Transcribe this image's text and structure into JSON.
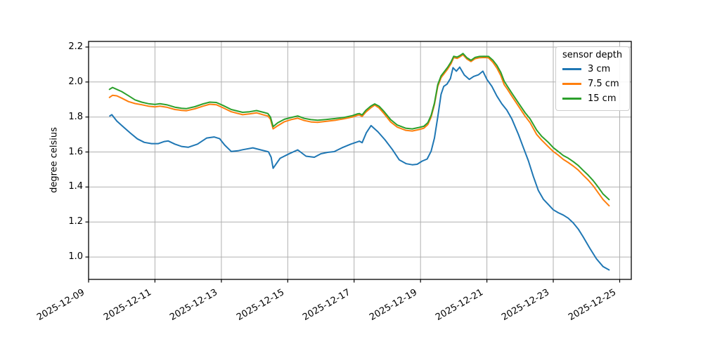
{
  "chart_data": {
    "type": "line",
    "title": "",
    "xlabel": "",
    "ylabel": "degree celsius",
    "legend": {
      "title": "sensor depth",
      "position": "upper right"
    },
    "style": {
      "grid_color": "#b0b0b0",
      "spine_color": "#000000",
      "text_color": "#000000",
      "background": "#ffffff",
      "grid": true
    },
    "axes": {
      "x_unit": "day of month, December 2025",
      "x_min": 9.0,
      "x_max": 25.35,
      "y_min": 0.872,
      "y_max": 2.232,
      "x_ticks": [
        {
          "v": 9,
          "label": "2025-12-09"
        },
        {
          "v": 11,
          "label": "2025-12-11"
        },
        {
          "v": 13,
          "label": "2025-12-13"
        },
        {
          "v": 15,
          "label": "2025-12-15"
        },
        {
          "v": 17,
          "label": "2025-12-17"
        },
        {
          "v": 19,
          "label": "2025-12-19"
        },
        {
          "v": 21,
          "label": "2025-12-21"
        },
        {
          "v": 23,
          "label": "2025-12-23"
        },
        {
          "v": 25,
          "label": "2025-12-25"
        }
      ],
      "y_ticks": [
        {
          "v": 1.0,
          "label": "1.0"
        },
        {
          "v": 1.2,
          "label": "1.2"
        },
        {
          "v": 1.4,
          "label": "1.4"
        },
        {
          "v": 1.6,
          "label": "1.6"
        },
        {
          "v": 1.8,
          "label": "1.8"
        },
        {
          "v": 2.0,
          "label": "2.0"
        },
        {
          "v": 2.2,
          "label": "2.2"
        }
      ]
    },
    "series": [
      {
        "name": "3 cm",
        "color": "#1f77b4",
        "x": [
          9.64,
          9.7,
          9.85,
          10.06,
          10.26,
          10.47,
          10.68,
          10.9,
          11.1,
          11.28,
          11.4,
          11.6,
          11.8,
          12.0,
          12.28,
          12.56,
          12.78,
          12.95,
          13.1,
          13.3,
          13.5,
          13.64,
          13.95,
          14.27,
          14.42,
          14.5,
          14.56,
          14.77,
          15.05,
          15.3,
          15.55,
          15.8,
          16.0,
          16.2,
          16.4,
          16.63,
          16.9,
          17.1,
          17.16,
          17.24,
          17.37,
          17.51,
          17.72,
          17.93,
          18.15,
          18.36,
          18.57,
          18.75,
          18.9,
          19.05,
          19.2,
          19.32,
          19.42,
          19.52,
          19.62,
          19.7,
          19.8,
          19.9,
          19.98,
          20.08,
          20.18,
          20.32,
          20.47,
          20.6,
          20.75,
          20.88,
          21.0,
          21.15,
          21.3,
          21.45,
          21.6,
          21.75,
          21.95,
          22.1,
          22.25,
          22.4,
          22.55,
          22.7,
          22.85,
          23.0,
          23.15,
          23.3,
          23.45,
          23.6,
          23.75,
          23.9,
          24.1,
          24.3,
          24.5,
          24.68
        ],
        "y": [
          1.806,
          1.813,
          1.777,
          1.741,
          1.708,
          1.675,
          1.655,
          1.648,
          1.648,
          1.66,
          1.663,
          1.645,
          1.632,
          1.627,
          1.645,
          1.68,
          1.686,
          1.676,
          1.64,
          1.603,
          1.607,
          1.613,
          1.624,
          1.608,
          1.601,
          1.57,
          1.507,
          1.564,
          1.591,
          1.612,
          1.576,
          1.57,
          1.59,
          1.598,
          1.602,
          1.624,
          1.645,
          1.658,
          1.662,
          1.653,
          1.711,
          1.751,
          1.715,
          1.67,
          1.615,
          1.555,
          1.533,
          1.527,
          1.53,
          1.548,
          1.56,
          1.605,
          1.68,
          1.8,
          1.93,
          1.975,
          1.988,
          2.02,
          2.082,
          2.062,
          2.085,
          2.04,
          2.015,
          2.032,
          2.042,
          2.062,
          2.015,
          1.975,
          1.92,
          1.875,
          1.84,
          1.79,
          1.7,
          1.625,
          1.55,
          1.46,
          1.38,
          1.33,
          1.3,
          1.27,
          1.253,
          1.24,
          1.222,
          1.195,
          1.16,
          1.115,
          1.05,
          0.99,
          0.945,
          0.926
        ]
      },
      {
        "name": "7.5 cm",
        "color": "#ff7f0e",
        "x": [
          9.63,
          9.72,
          9.85,
          10.0,
          10.2,
          10.4,
          10.6,
          10.8,
          11.0,
          11.15,
          11.35,
          11.6,
          11.8,
          11.95,
          12.2,
          12.45,
          12.65,
          12.85,
          13.05,
          13.3,
          13.64,
          13.85,
          14.06,
          14.27,
          14.4,
          14.48,
          14.56,
          14.7,
          14.9,
          15.1,
          15.3,
          15.5,
          15.7,
          15.9,
          16.15,
          16.45,
          16.7,
          16.95,
          17.1,
          17.16,
          17.24,
          17.35,
          17.5,
          17.62,
          17.75,
          17.9,
          18.1,
          18.3,
          18.55,
          18.75,
          18.95,
          19.1,
          19.22,
          19.32,
          19.42,
          19.52,
          19.62,
          19.72,
          19.82,
          19.92,
          20.0,
          20.1,
          20.18,
          20.28,
          20.4,
          20.52,
          20.64,
          20.78,
          20.92,
          21.05,
          21.18,
          21.3,
          21.42,
          21.52,
          21.62,
          21.75,
          21.95,
          22.15,
          22.3,
          22.5,
          22.65,
          22.85,
          23.0,
          23.15,
          23.3,
          23.45,
          23.6,
          23.75,
          23.9,
          24.05,
          24.2,
          24.35,
          24.5,
          24.68
        ],
        "y": [
          1.912,
          1.924,
          1.921,
          1.908,
          1.888,
          1.877,
          1.87,
          1.862,
          1.858,
          1.862,
          1.856,
          1.843,
          1.838,
          1.836,
          1.847,
          1.862,
          1.873,
          1.87,
          1.853,
          1.83,
          1.813,
          1.818,
          1.824,
          1.812,
          1.806,
          1.788,
          1.732,
          1.75,
          1.773,
          1.785,
          1.793,
          1.78,
          1.772,
          1.77,
          1.775,
          1.782,
          1.79,
          1.8,
          1.81,
          1.812,
          1.803,
          1.828,
          1.852,
          1.868,
          1.852,
          1.82,
          1.772,
          1.742,
          1.724,
          1.72,
          1.728,
          1.736,
          1.757,
          1.8,
          1.872,
          1.975,
          2.025,
          2.05,
          2.075,
          2.105,
          2.14,
          2.135,
          2.143,
          2.156,
          2.131,
          2.117,
          2.133,
          2.139,
          2.14,
          2.138,
          2.113,
          2.08,
          2.037,
          1.985,
          1.958,
          1.92,
          1.862,
          1.805,
          1.768,
          1.7,
          1.668,
          1.63,
          1.603,
          1.582,
          1.558,
          1.54,
          1.52,
          1.497,
          1.468,
          1.44,
          1.407,
          1.368,
          1.328,
          1.293
        ]
      },
      {
        "name": "15 cm",
        "color": "#2ca02c",
        "x": [
          9.63,
          9.72,
          9.85,
          10.0,
          10.2,
          10.4,
          10.6,
          10.8,
          11.0,
          11.15,
          11.35,
          11.6,
          11.8,
          11.95,
          12.2,
          12.45,
          12.65,
          12.85,
          13.05,
          13.3,
          13.64,
          13.85,
          14.06,
          14.27,
          14.4,
          14.48,
          14.56,
          14.7,
          14.9,
          15.1,
          15.3,
          15.5,
          15.7,
          15.9,
          16.15,
          16.45,
          16.7,
          16.95,
          17.1,
          17.16,
          17.24,
          17.35,
          17.5,
          17.62,
          17.75,
          17.9,
          18.1,
          18.3,
          18.55,
          18.75,
          18.95,
          19.1,
          19.22,
          19.32,
          19.42,
          19.52,
          19.62,
          19.72,
          19.82,
          19.92,
          20.0,
          20.1,
          20.18,
          20.28,
          20.4,
          20.52,
          20.64,
          20.78,
          20.92,
          21.05,
          21.18,
          21.3,
          21.42,
          21.52,
          21.62,
          21.75,
          21.95,
          22.15,
          22.3,
          22.5,
          22.65,
          22.85,
          23.0,
          23.15,
          23.3,
          23.45,
          23.6,
          23.75,
          23.9,
          24.05,
          24.2,
          24.35,
          24.5,
          24.68
        ],
        "y": [
          1.958,
          1.969,
          1.958,
          1.945,
          1.922,
          1.898,
          1.885,
          1.876,
          1.872,
          1.876,
          1.87,
          1.856,
          1.85,
          1.848,
          1.859,
          1.875,
          1.885,
          1.883,
          1.866,
          1.843,
          1.827,
          1.83,
          1.837,
          1.827,
          1.82,
          1.8,
          1.745,
          1.767,
          1.787,
          1.797,
          1.806,
          1.792,
          1.785,
          1.782,
          1.786,
          1.792,
          1.798,
          1.808,
          1.818,
          1.82,
          1.812,
          1.838,
          1.862,
          1.875,
          1.862,
          1.832,
          1.785,
          1.754,
          1.736,
          1.732,
          1.74,
          1.747,
          1.768,
          1.81,
          1.88,
          1.985,
          2.035,
          2.06,
          2.085,
          2.115,
          2.147,
          2.142,
          2.15,
          2.163,
          2.138,
          2.124,
          2.14,
          2.146,
          2.147,
          2.146,
          2.125,
          2.095,
          2.055,
          2.005,
          1.975,
          1.937,
          1.88,
          1.825,
          1.79,
          1.725,
          1.69,
          1.655,
          1.625,
          1.603,
          1.58,
          1.565,
          1.545,
          1.523,
          1.495,
          1.468,
          1.437,
          1.4,
          1.36,
          1.328
        ]
      }
    ]
  }
}
